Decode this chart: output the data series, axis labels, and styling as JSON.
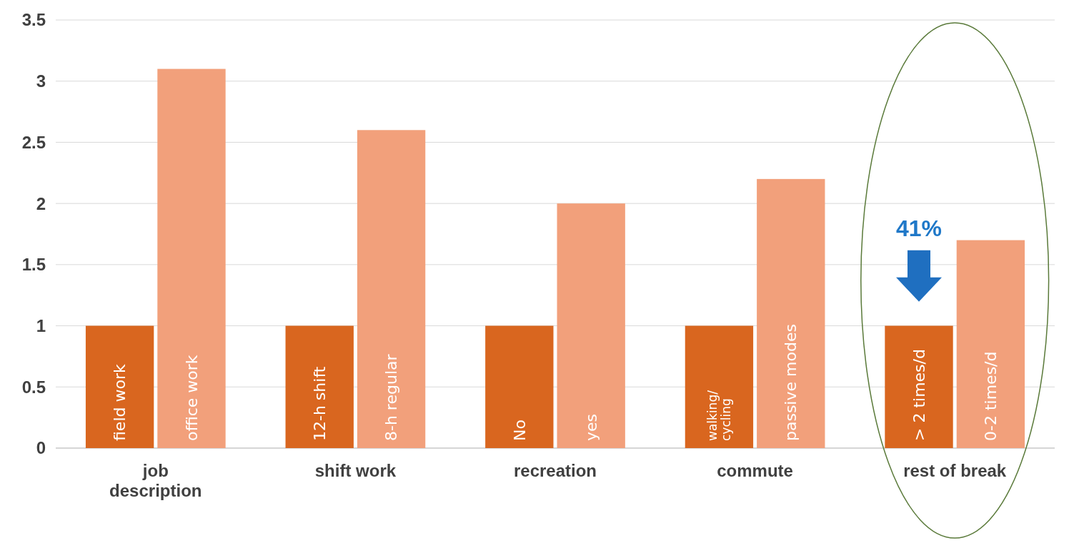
{
  "chart_data": {
    "type": "bar",
    "categories": [
      "job description",
      "shift work",
      "recreation",
      "commute",
      "rest of break"
    ],
    "series": [
      {
        "color": "#d9661f",
        "values": [
          1,
          1,
          1,
          1,
          1
        ]
      },
      {
        "color": "#f2a07b",
        "values": [
          3.1,
          2.6,
          2.0,
          2.2,
          1.7
        ]
      }
    ],
    "ylim": [
      0,
      3.5
    ],
    "yticks": [
      0,
      0.5,
      1,
      1.5,
      2,
      2.5,
      3,
      3.5
    ],
    "grid": "y",
    "annotations": [
      {
        "text": "field work",
        "x": "job description",
        "y": 0
      },
      {
        "text": "office work",
        "x": "job description",
        "y": 0
      },
      {
        "text": "12-h shift",
        "x": "shift work",
        "y": 0
      },
      {
        "text": "8-h regular",
        "x": "shift work",
        "y": 0
      },
      {
        "text": "No",
        "x": "recreation",
        "y": 0
      },
      {
        "text": "yes",
        "x": "recreation",
        "y": 0
      },
      {
        "text": "walking/ cycling",
        "x": "commute",
        "y": 0
      },
      {
        "text": "passive modes",
        "x": "commute",
        "y": 0
      },
      {
        "text": "> 2 times/d",
        "x": "rest of break",
        "y": 0
      },
      {
        "text": "0-2 times/d",
        "x": "rest of break",
        "y": 0
      },
      {
        "text": "41%",
        "x": "rest of break",
        "y": 1.5
      }
    ]
  }
}
